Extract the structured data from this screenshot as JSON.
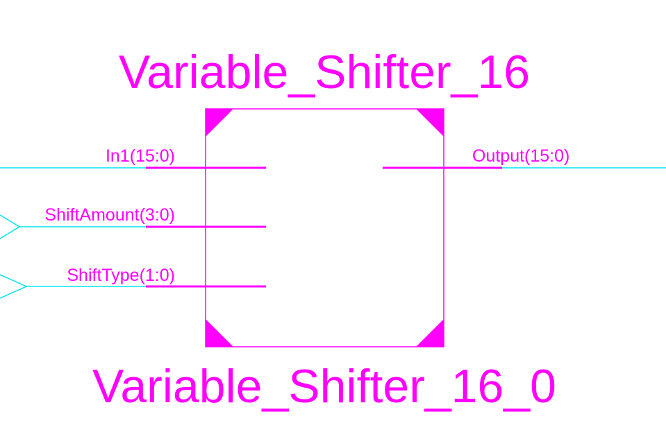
{
  "symbol": {
    "component_name": "Variable_Shifter_16",
    "instance_name": "Variable_Shifter_16_0"
  },
  "pins": {
    "inputs": [
      "In1(15:0)",
      "ShiftAmount(3:0)",
      "ShiftType(1:0)"
    ],
    "outputs": [
      "Output(15:0)"
    ]
  },
  "colors": {
    "symbol": "#ff00ff",
    "wire": "#00e5ee",
    "background": "#ffffff"
  }
}
